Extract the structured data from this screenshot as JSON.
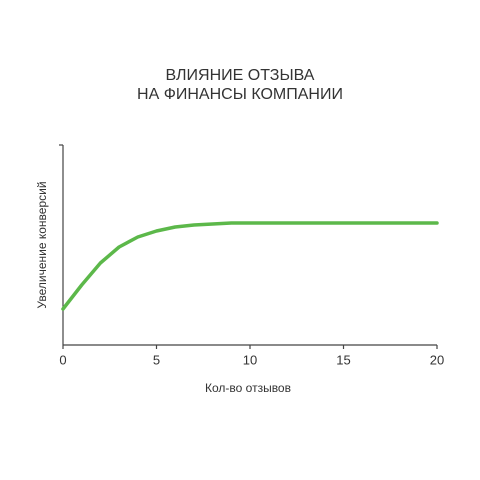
{
  "chart_data": {
    "type": "line",
    "title": [
      "ВЛИЯНИЕ ОТЗЫВА",
      "НА ФИНАНСЫ КОМПАНИИ"
    ],
    "x_label": "Кол-во отзывов",
    "y_label": "Увеличение конверсий",
    "x": [
      0,
      1,
      2,
      3,
      4,
      5,
      6,
      7,
      8,
      9,
      10,
      11,
      12,
      13,
      14,
      15,
      16,
      17,
      18,
      19,
      20
    ],
    "series": [
      {
        "color": "#5cb84a",
        "values": [
          18,
          30,
          41,
          49,
          54,
          57,
          59,
          60,
          60.5,
          61,
          61,
          61,
          61,
          61,
          61,
          61,
          61,
          61,
          61,
          61,
          61
        ]
      }
    ],
    "xlim": [
      0,
      20
    ],
    "xticks": [
      0,
      5,
      10,
      15,
      20
    ],
    "ylim": [
      0,
      100
    ],
    "grid": false
  }
}
